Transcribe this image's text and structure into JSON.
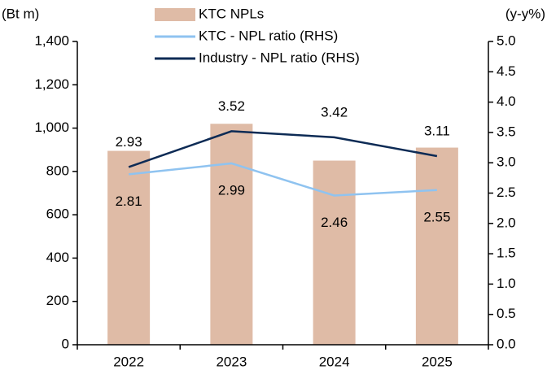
{
  "chart_data": {
    "type": "bar-line",
    "y_label": "(Bt m)",
    "y2_label": "(y-y%)",
    "categories": [
      "2022",
      "2023",
      "2024",
      "2025"
    ],
    "series": [
      {
        "name": "KTC NPLs",
        "type": "bar",
        "color": "#dfbba6",
        "values": [
          895,
          1020,
          850,
          910
        ]
      },
      {
        "name": "KTC - NPL ratio (RHS)",
        "type": "line",
        "axis": "y2",
        "color": "#8fc3f0",
        "values": [
          2.81,
          2.99,
          2.46,
          2.55
        ],
        "label_position": "below"
      },
      {
        "name": "Industry - NPL ratio  (RHS)",
        "type": "line",
        "axis": "y2",
        "color": "#0d2b55",
        "values": [
          2.93,
          3.52,
          3.42,
          3.11
        ],
        "label_position": "above"
      }
    ],
    "ylim": [
      0,
      1400
    ],
    "yticks": [
      0,
      200,
      400,
      600,
      800,
      {
        "value": 1000,
        "label": "1,000"
      },
      {
        "value": 1200,
        "label": "1,200"
      },
      {
        "value": 1400,
        "label": "1,400"
      }
    ],
    "y2lim": [
      0,
      5
    ],
    "y2ticks": [
      {
        "value": 0,
        "label": "0.0"
      },
      0.5,
      {
        "value": 1,
        "label": "1.0"
      },
      1.5,
      {
        "value": 2,
        "label": "2.0"
      },
      2.5,
      {
        "value": 3,
        "label": "3.0"
      },
      3.5,
      {
        "value": 4,
        "label": "4.0"
      },
      4.5,
      {
        "value": 5,
        "label": "5.0"
      }
    ],
    "legend": "top"
  }
}
